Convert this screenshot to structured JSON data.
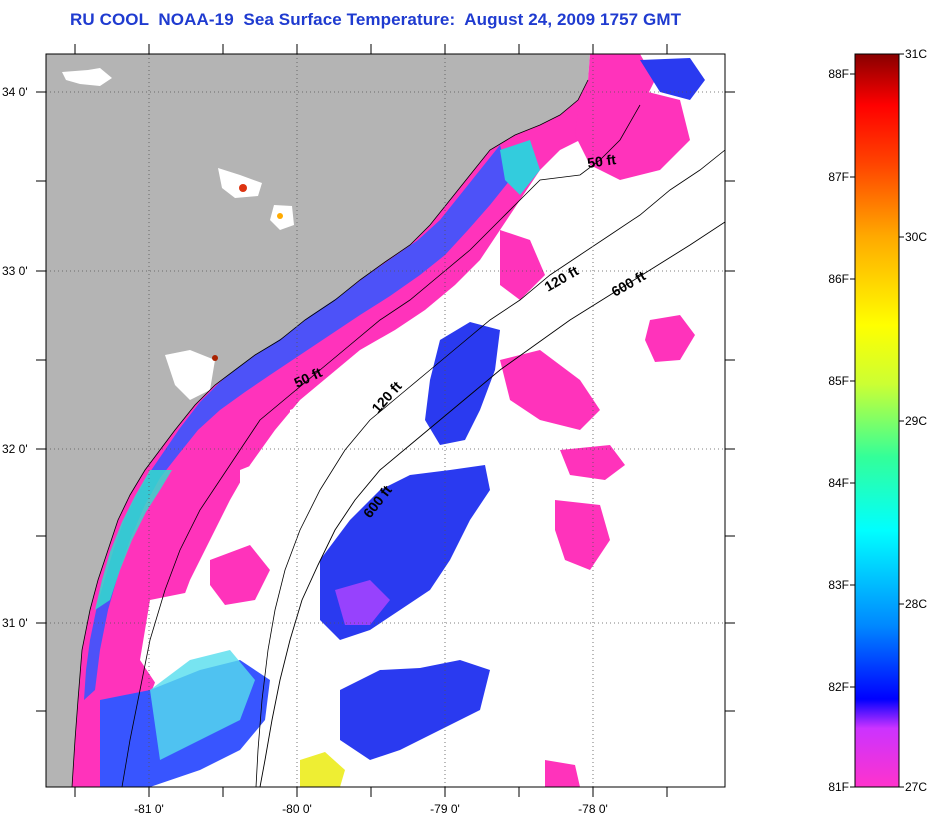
{
  "title": "RU COOL  NOAA-19  Sea Surface Temperature:  August 24, 2009 1757 GMT",
  "map": {
    "lon_labels": [
      "-81 0'",
      "-80 0'",
      "-79 0'",
      "-78 0'"
    ],
    "lat_labels": [
      "34 0'",
      "33 0'",
      "32 0'",
      "31 0'"
    ],
    "contour_labels": [
      "50 ft",
      "120 ft",
      "600 ft",
      "50 ft",
      "120 ft",
      "600 ft"
    ],
    "land_color": "#b4b4b4",
    "ocean_no_data_color": "#ffffff"
  },
  "colorbar": {
    "fahrenheit_labels": [
      "88F",
      "87F",
      "86F",
      "85F",
      "84F",
      "83F",
      "82F",
      "81F"
    ],
    "celsius_labels": [
      "31C",
      "30C",
      "29C",
      "28C",
      "27C"
    ],
    "stops": [
      "#ff33cc",
      "#cc33ff",
      "#0000ff",
      "#00aaff",
      "#00ffff",
      "#33ff99",
      "#ccff33",
      "#ffff00",
      "#ffaa00",
      "#ff5500",
      "#ff0000",
      "#880000"
    ]
  }
}
